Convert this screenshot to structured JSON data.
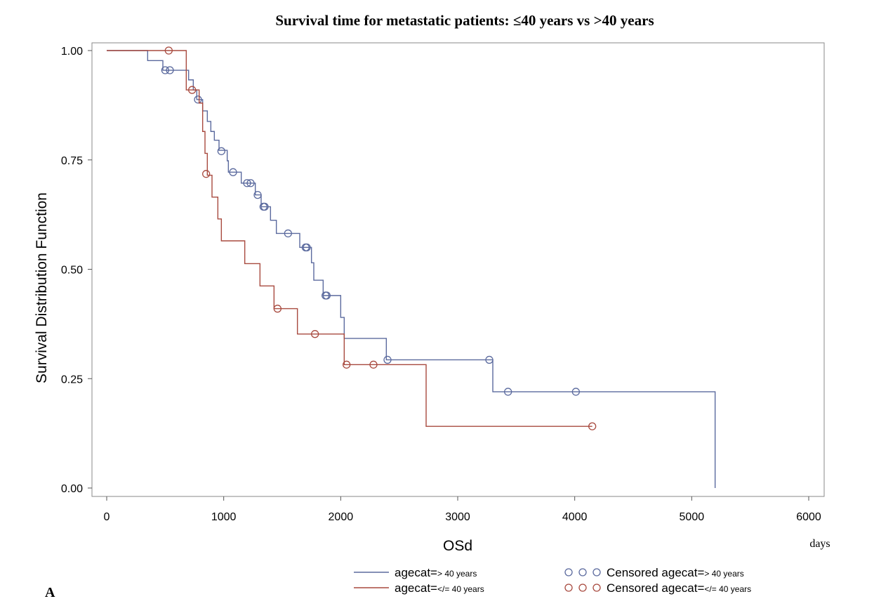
{
  "chart_data": {
    "type": "line",
    "title": "Survival time for metastatic patients: ≤40 years vs >40 years",
    "xlabel": "OSd",
    "x_unit": "days",
    "ylabel": "Survival Distribution Function",
    "xlim": [
      0,
      6000
    ],
    "ylim": [
      0,
      1
    ],
    "x_ticks": [
      "0",
      "1000",
      "2000",
      "3000",
      "4000",
      "5000",
      "6000"
    ],
    "y_ticks": [
      "0.00",
      "0.25",
      "0.50",
      "0.75",
      "1.00"
    ],
    "grid": false,
    "legend_position": "bottom",
    "panel_label": "A",
    "series": [
      {
        "legend_prefix": "agecat=",
        "legend_suffix": "> 40 years",
        "censored_legend_prefix": "Censored agecat=",
        "color": "#5b6a9e",
        "steps": [
          [
            0,
            1.0
          ],
          [
            350,
            0.977
          ],
          [
            480,
            0.955
          ],
          [
            700,
            0.933
          ],
          [
            740,
            0.91
          ],
          [
            770,
            0.888
          ],
          [
            820,
            0.862
          ],
          [
            860,
            0.838
          ],
          [
            890,
            0.815
          ],
          [
            920,
            0.795
          ],
          [
            960,
            0.772
          ],
          [
            1030,
            0.748
          ],
          [
            1040,
            0.722
          ],
          [
            1150,
            0.697
          ],
          [
            1270,
            0.67
          ],
          [
            1320,
            0.643
          ],
          [
            1400,
            0.612
          ],
          [
            1450,
            0.582
          ],
          [
            1650,
            0.55
          ],
          [
            1750,
            0.515
          ],
          [
            1770,
            0.475
          ],
          [
            1850,
            0.44
          ],
          [
            2000,
            0.39
          ],
          [
            2030,
            0.342
          ],
          [
            2390,
            0.293
          ],
          [
            3300,
            0.22
          ],
          [
            5200,
            0.0
          ]
        ],
        "censored": [
          [
            500,
            0.955
          ],
          [
            540,
            0.955
          ],
          [
            780,
            0.888
          ],
          [
            980,
            0.77
          ],
          [
            1080,
            0.722
          ],
          [
            1200,
            0.697
          ],
          [
            1230,
            0.697
          ],
          [
            1290,
            0.67
          ],
          [
            1340,
            0.643
          ],
          [
            1350,
            0.643
          ],
          [
            1550,
            0.582
          ],
          [
            1700,
            0.55
          ],
          [
            1710,
            0.55
          ],
          [
            1870,
            0.44
          ],
          [
            1880,
            0.44
          ],
          [
            2400,
            0.293
          ],
          [
            3270,
            0.293
          ],
          [
            3430,
            0.22
          ],
          [
            4010,
            0.22
          ]
        ]
      },
      {
        "legend_prefix": "agecat=",
        "legend_suffix": "</= 40 years",
        "censored_legend_prefix": "Censored agecat=",
        "color": "#a84a3f",
        "steps": [
          [
            0,
            1.0
          ],
          [
            680,
            0.91
          ],
          [
            790,
            0.88
          ],
          [
            820,
            0.815
          ],
          [
            840,
            0.765
          ],
          [
            860,
            0.715
          ],
          [
            900,
            0.665
          ],
          [
            950,
            0.615
          ],
          [
            980,
            0.565
          ],
          [
            1180,
            0.513
          ],
          [
            1310,
            0.462
          ],
          [
            1430,
            0.41
          ],
          [
            1630,
            0.352
          ],
          [
            2030,
            0.282
          ],
          [
            2730,
            0.141
          ]
        ],
        "end_x": 4150,
        "censored": [
          [
            530,
            1.0
          ],
          [
            730,
            0.91
          ],
          [
            850,
            0.718
          ],
          [
            1460,
            0.41
          ],
          [
            1780,
            0.352
          ],
          [
            2050,
            0.282
          ],
          [
            2280,
            0.282
          ],
          [
            4150,
            0.141
          ]
        ]
      }
    ]
  }
}
